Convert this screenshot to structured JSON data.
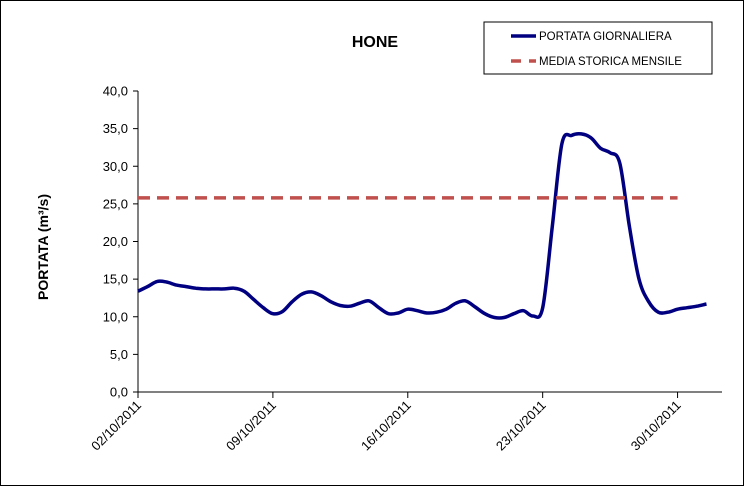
{
  "chart_data": {
    "type": "line",
    "title": "HONE",
    "ylabel": "PORTATA (m³/s)",
    "xlabel": "",
    "ylim": [
      0,
      40
    ],
    "yticks": [
      "0,0",
      "5,0",
      "10,0",
      "15,0",
      "20,0",
      "25,0",
      "30,0",
      "35,0",
      "40,0"
    ],
    "ytick_values": [
      0,
      5,
      10,
      15,
      20,
      25,
      30,
      35,
      40
    ],
    "xticks": [
      "02/10/2011",
      "09/10/2011",
      "16/10/2011",
      "23/10/2011",
      "30/10/2011"
    ],
    "xtick_days": [
      2,
      9,
      16,
      23,
      30
    ],
    "xlim_days": [
      2,
      31.5
    ],
    "grid": false,
    "legend_position": "top-right",
    "series": [
      {
        "name": "PORTATA GIORNALIERA",
        "color": "#000080",
        "style": "solid",
        "x_days": [
          2,
          2.5,
          3,
          3.5,
          4,
          4.5,
          5,
          5.5,
          6,
          6.5,
          7,
          7.5,
          8,
          8.5,
          9,
          9.5,
          10,
          10.5,
          11,
          11.5,
          12,
          12.5,
          13,
          13.5,
          14,
          14.5,
          15,
          15.5,
          16,
          16.5,
          17,
          17.5,
          18,
          18.5,
          19,
          19.5,
          20,
          20.5,
          21,
          21.5,
          22,
          22.5,
          23,
          23.5,
          24,
          24.5,
          25,
          25.5,
          26,
          26.5,
          27,
          27.5,
          28,
          28.5,
          29,
          29.5,
          30,
          30.5,
          31,
          31.5
        ],
        "values": [
          13.4,
          14.0,
          14.7,
          14.6,
          14.2,
          14.0,
          13.8,
          13.7,
          13.7,
          13.7,
          13.8,
          13.4,
          12.3,
          11.2,
          10.4,
          10.7,
          12.0,
          13.0,
          13.3,
          12.8,
          12.0,
          11.5,
          11.4,
          11.8,
          12.1,
          11.2,
          10.4,
          10.5,
          11.0,
          10.8,
          10.5,
          10.6,
          11.0,
          11.8,
          12.1,
          11.3,
          10.4,
          9.9,
          9.9,
          10.4,
          10.8,
          10.1,
          11.2,
          22.0,
          33.0,
          34.1,
          34.3,
          33.8,
          32.4,
          31.8,
          30.4,
          22.0,
          15.0,
          12.0,
          10.6,
          10.6,
          11.0,
          11.2,
          11.4,
          11.7
        ]
      },
      {
        "name": "MEDIA STORICA MENSILE",
        "color": "#c0504d",
        "style": "dashed",
        "x_days": [
          2,
          30
        ],
        "values": [
          25.8,
          25.8
        ]
      }
    ]
  }
}
